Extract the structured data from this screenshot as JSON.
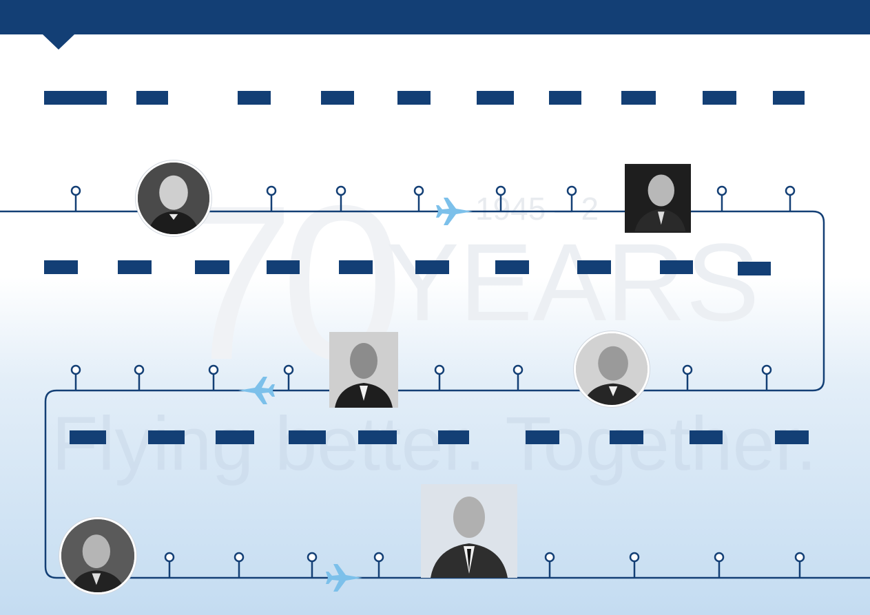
{
  "watermark": {
    "number": "70",
    "years": "YEARS",
    "dates": "1945 – 2",
    "tagline": "Flying better. Together."
  },
  "colors": {
    "primary": "#133f75",
    "plane": "#7cc0ea",
    "background_bottom": "#c4dcf1"
  }
}
